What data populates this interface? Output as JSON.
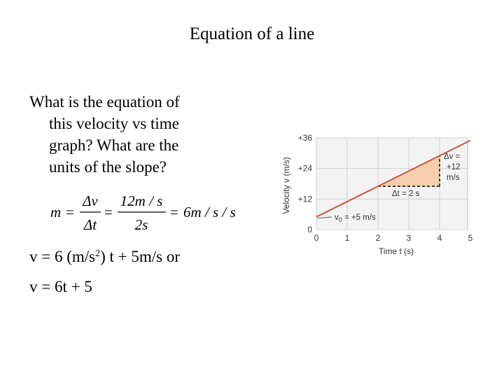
{
  "title": "Equation of a line",
  "question": [
    "What is the equation of",
    "this velocity vs time",
    "graph? What are the",
    "units of the slope?"
  ],
  "equation": {
    "lhs": "m",
    "eq": "=",
    "frac1": {
      "num": "Δv",
      "den": "Δt"
    },
    "frac2": {
      "num": "12m / s",
      "den": "2s"
    },
    "result": "6m / s / s"
  },
  "answer": [
    [
      "v = 6 (m/s",
      "2",
      ") t + 5m/s or"
    ],
    [
      "v = 6t + 5"
    ]
  ],
  "chart_data": {
    "type": "line",
    "x_label": "Time t (s)",
    "y_label": "Velocity v (m/s)",
    "x": [
      0,
      5
    ],
    "series": [
      {
        "values": [
          5,
          35
        ],
        "color": "#d0543a"
      }
    ],
    "xlim": [
      0,
      5
    ],
    "xticks": [
      0,
      1,
      2,
      3,
      4,
      5
    ],
    "ylim": [
      0,
      36
    ],
    "yticks": [
      0,
      {
        "value": 12,
        "label": "+12"
      },
      {
        "value": 24,
        "label": "+24"
      },
      {
        "value": 36,
        "label": "+36"
      }
    ],
    "grid": true,
    "slope_triangle": {
      "x": [
        2,
        4
      ],
      "y": [
        17,
        29
      ],
      "color": "#f6cfae"
    },
    "annotations": {
      "v0": [
        "v",
        "0",
        " = +5 m/s"
      ],
      "dv": [
        "Δv =",
        "+12",
        "m/s"
      ],
      "dt": "Δt = 2 s"
    }
  }
}
